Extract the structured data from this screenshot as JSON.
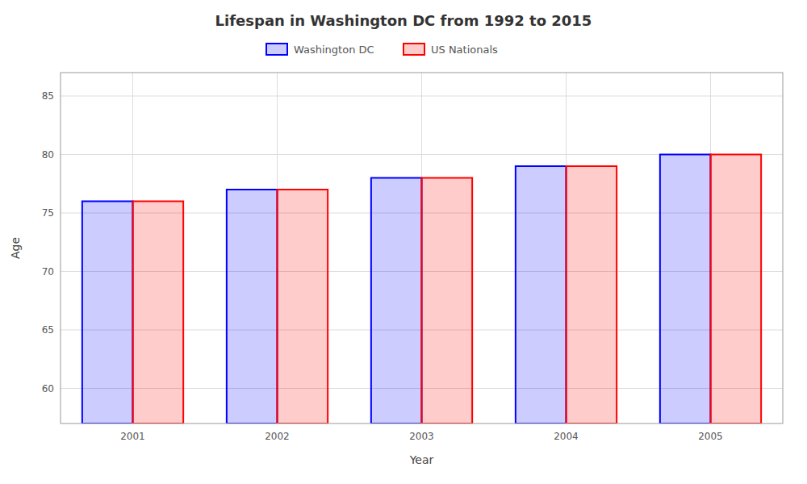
{
  "chart_data": {
    "type": "bar",
    "title": "Lifespan in Washington DC from 1992 to 2015",
    "x_label": "Year",
    "y_label": "Age",
    "categories": [
      "2001",
      "2002",
      "2003",
      "2004",
      "2005"
    ],
    "series": [
      {
        "name": "Washington DC",
        "color": "#0000ff",
        "values": [
          76,
          77,
          78,
          79,
          80
        ]
      },
      {
        "name": "US Nationals",
        "color": "#ff0000",
        "values": [
          76,
          77,
          78,
          79,
          80
        ]
      }
    ],
    "ylim": [
      57,
      87
    ],
    "yticks": [
      60,
      65,
      70,
      75,
      80,
      85
    ],
    "grid": true,
    "legend": "top"
  }
}
